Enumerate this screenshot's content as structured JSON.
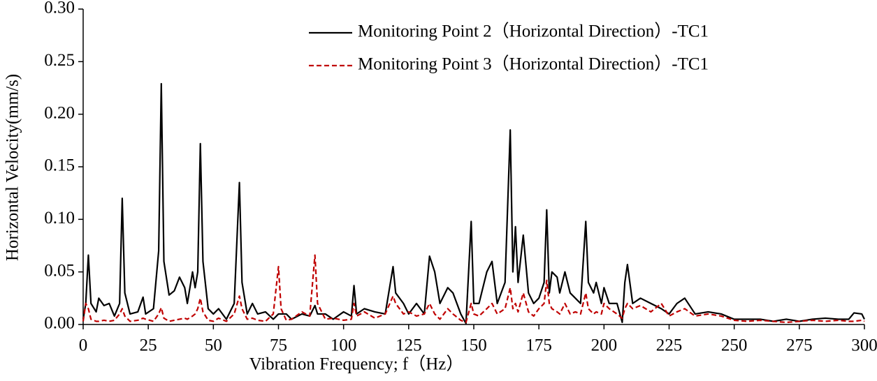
{
  "chart_data": {
    "type": "line",
    "xlabel": "Vibration Frequency; f（Hz）",
    "ylabel": "Horizontal  Velocity(mm/s)",
    "x": [
      0,
      1,
      2,
      3,
      5,
      6,
      8,
      10,
      12,
      14,
      15,
      16,
      18,
      21,
      23,
      24,
      27,
      29,
      30,
      31,
      33,
      35,
      37,
      39,
      40,
      42,
      43,
      44,
      45,
      46,
      48,
      50,
      52,
      55,
      58,
      60,
      61,
      63,
      65,
      67,
      70,
      73,
      75,
      76,
      78,
      80,
      84,
      87,
      89,
      90,
      93,
      96,
      100,
      103,
      104,
      105,
      108,
      112,
      116,
      119,
      120,
      123,
      125,
      128,
      131,
      133,
      135,
      137,
      140,
      142,
      145,
      147,
      149,
      150,
      152,
      155,
      157,
      159,
      162,
      164,
      165,
      166,
      167,
      169,
      171,
      173,
      175,
      177,
      178,
      179,
      180,
      182,
      183,
      185,
      187,
      189,
      191,
      193,
      194,
      196,
      197,
      199,
      200,
      202,
      205,
      207,
      208,
      209,
      211,
      214,
      218,
      222,
      225,
      228,
      231,
      235,
      240,
      245,
      250,
      255,
      260,
      265,
      270,
      275,
      280,
      285,
      290,
      294,
      296,
      299,
      300
    ],
    "series": [
      {
        "name": "Monitoring Point 2（Horizontal Direction）-TC1",
        "color": "#000000",
        "dash": "solid",
        "values": [
          0.005,
          0.02,
          0.066,
          0.02,
          0.012,
          0.025,
          0.018,
          0.02,
          0.008,
          0.02,
          0.12,
          0.03,
          0.01,
          0.012,
          0.026,
          0.01,
          0.015,
          0.07,
          0.229,
          0.06,
          0.028,
          0.032,
          0.045,
          0.035,
          0.02,
          0.05,
          0.035,
          0.05,
          0.172,
          0.06,
          0.015,
          0.01,
          0.015,
          0.005,
          0.02,
          0.135,
          0.04,
          0.01,
          0.02,
          0.01,
          0.012,
          0.005,
          0.01,
          0.01,
          0.01,
          0.005,
          0.01,
          0.008,
          0.018,
          0.01,
          0.01,
          0.005,
          0.012,
          0.008,
          0.037,
          0.01,
          0.015,
          0.012,
          0.01,
          0.055,
          0.03,
          0.02,
          0.01,
          0.02,
          0.01,
          0.065,
          0.05,
          0.02,
          0.035,
          0.03,
          0.01,
          0.001,
          0.098,
          0.02,
          0.02,
          0.05,
          0.06,
          0.02,
          0.04,
          0.185,
          0.05,
          0.093,
          0.04,
          0.085,
          0.03,
          0.02,
          0.025,
          0.04,
          0.109,
          0.03,
          0.05,
          0.045,
          0.03,
          0.05,
          0.03,
          0.025,
          0.02,
          0.098,
          0.04,
          0.03,
          0.04,
          0.02,
          0.035,
          0.02,
          0.02,
          0.002,
          0.04,
          0.057,
          0.02,
          0.025,
          0.02,
          0.015,
          0.01,
          0.02,
          0.025,
          0.01,
          0.012,
          0.01,
          0.005,
          0.005,
          0.005,
          0.003,
          0.005,
          0.003,
          0.005,
          0.006,
          0.005,
          0.005,
          0.011,
          0.01,
          0.005
        ]
      },
      {
        "name": "Monitoring Point 3（Horizontal Direction）-TC1",
        "color": "#c00000",
        "dash": "dashed",
        "values": [
          0.003,
          0.02,
          0.015,
          0.005,
          0.003,
          0.003,
          0.004,
          0.003,
          0.004,
          0.01,
          0.015,
          0.008,
          0.003,
          0.004,
          0.006,
          0.005,
          0.003,
          0.01,
          0.016,
          0.006,
          0.003,
          0.004,
          0.005,
          0.006,
          0.005,
          0.008,
          0.01,
          0.015,
          0.025,
          0.012,
          0.004,
          0.003,
          0.006,
          0.003,
          0.01,
          0.027,
          0.015,
          0.005,
          0.006,
          0.004,
          0.003,
          0.01,
          0.055,
          0.015,
          0.004,
          0.005,
          0.012,
          0.008,
          0.066,
          0.02,
          0.005,
          0.006,
          0.004,
          0.005,
          0.02,
          0.008,
          0.012,
          0.006,
          0.01,
          0.027,
          0.02,
          0.01,
          0.012,
          0.008,
          0.01,
          0.02,
          0.01,
          0.005,
          0.015,
          0.01,
          0.004,
          0.002,
          0.02,
          0.01,
          0.008,
          0.015,
          0.02,
          0.01,
          0.015,
          0.035,
          0.015,
          0.02,
          0.012,
          0.03,
          0.012,
          0.008,
          0.015,
          0.02,
          0.042,
          0.02,
          0.015,
          0.012,
          0.01,
          0.02,
          0.01,
          0.012,
          0.01,
          0.03,
          0.015,
          0.01,
          0.012,
          0.01,
          0.02,
          0.015,
          0.01,
          0.006,
          0.015,
          0.02,
          0.015,
          0.018,
          0.012,
          0.02,
          0.008,
          0.012,
          0.015,
          0.008,
          0.01,
          0.008,
          0.004,
          0.003,
          0.004,
          0.003,
          0.002,
          0.003,
          0.004,
          0.003,
          0.004,
          0.003,
          0.003,
          0.004,
          0.003
        ]
      }
    ],
    "xlim": [
      0,
      300
    ],
    "xticks": [
      0,
      25,
      50,
      75,
      100,
      125,
      150,
      175,
      200,
      225,
      250,
      275,
      300
    ],
    "ylim": [
      0,
      0.3
    ],
    "yticks": [
      {
        "value": 0,
        "label": "0.00"
      },
      {
        "value": 0.05,
        "label": "0.05"
      },
      {
        "value": 0.1,
        "label": "0.10"
      },
      {
        "value": 0.15,
        "label": "0.15"
      },
      {
        "value": 0.2,
        "label": "0.20"
      },
      {
        "value": 0.25,
        "label": "0.25"
      },
      {
        "value": 0.3,
        "label": "0.30"
      }
    ],
    "grid": false,
    "legend": "upper right"
  }
}
